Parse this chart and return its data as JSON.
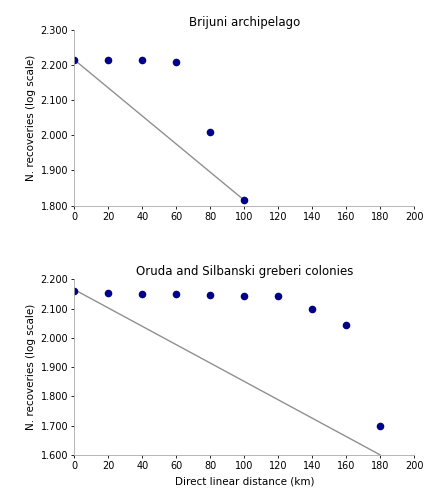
{
  "top": {
    "title": "Brijuni archipelago",
    "scatter_x": [
      0,
      20,
      40,
      60,
      80,
      100
    ],
    "scatter_y": [
      2.215,
      2.215,
      2.215,
      2.21,
      2.01,
      1.815
    ],
    "line_x": [
      0,
      100
    ],
    "line_y": [
      2.215,
      1.815
    ],
    "ylim": [
      1.8,
      2.3
    ],
    "yticks": [
      1.8,
      1.9,
      2.0,
      2.1,
      2.2,
      2.3
    ],
    "xlim": [
      0,
      200
    ],
    "xticks": [
      0,
      20,
      40,
      60,
      80,
      100,
      120,
      140,
      160,
      180,
      200
    ]
  },
  "bottom": {
    "title": "Oruda and Silbanski greberi colonies",
    "scatter_x": [
      0,
      20,
      40,
      60,
      80,
      100,
      120,
      140,
      160,
      180
    ],
    "scatter_y": [
      2.16,
      2.155,
      2.15,
      2.15,
      2.145,
      2.143,
      2.143,
      2.1,
      2.045,
      1.7
    ],
    "line_x": [
      0,
      180
    ],
    "line_y": [
      2.165,
      1.6
    ],
    "ylim": [
      1.6,
      2.2
    ],
    "yticks": [
      1.6,
      1.7,
      1.8,
      1.9,
      2.0,
      2.1,
      2.2
    ],
    "xlim": [
      0,
      200
    ],
    "xticks": [
      0,
      20,
      40,
      60,
      80,
      100,
      120,
      140,
      160,
      180,
      200
    ]
  },
  "xlabel": "Direct linear distance (km)",
  "ylabel": "N. recoveries (log scale)",
  "scatter_color": "#00008B",
  "line_color": "#909090",
  "bg_color": "#ffffff",
  "marker": "o",
  "marker_size": 20,
  "line_width": 1.0,
  "title_fontsize": 8.5,
  "label_fontsize": 7.5,
  "tick_fontsize": 7.0
}
